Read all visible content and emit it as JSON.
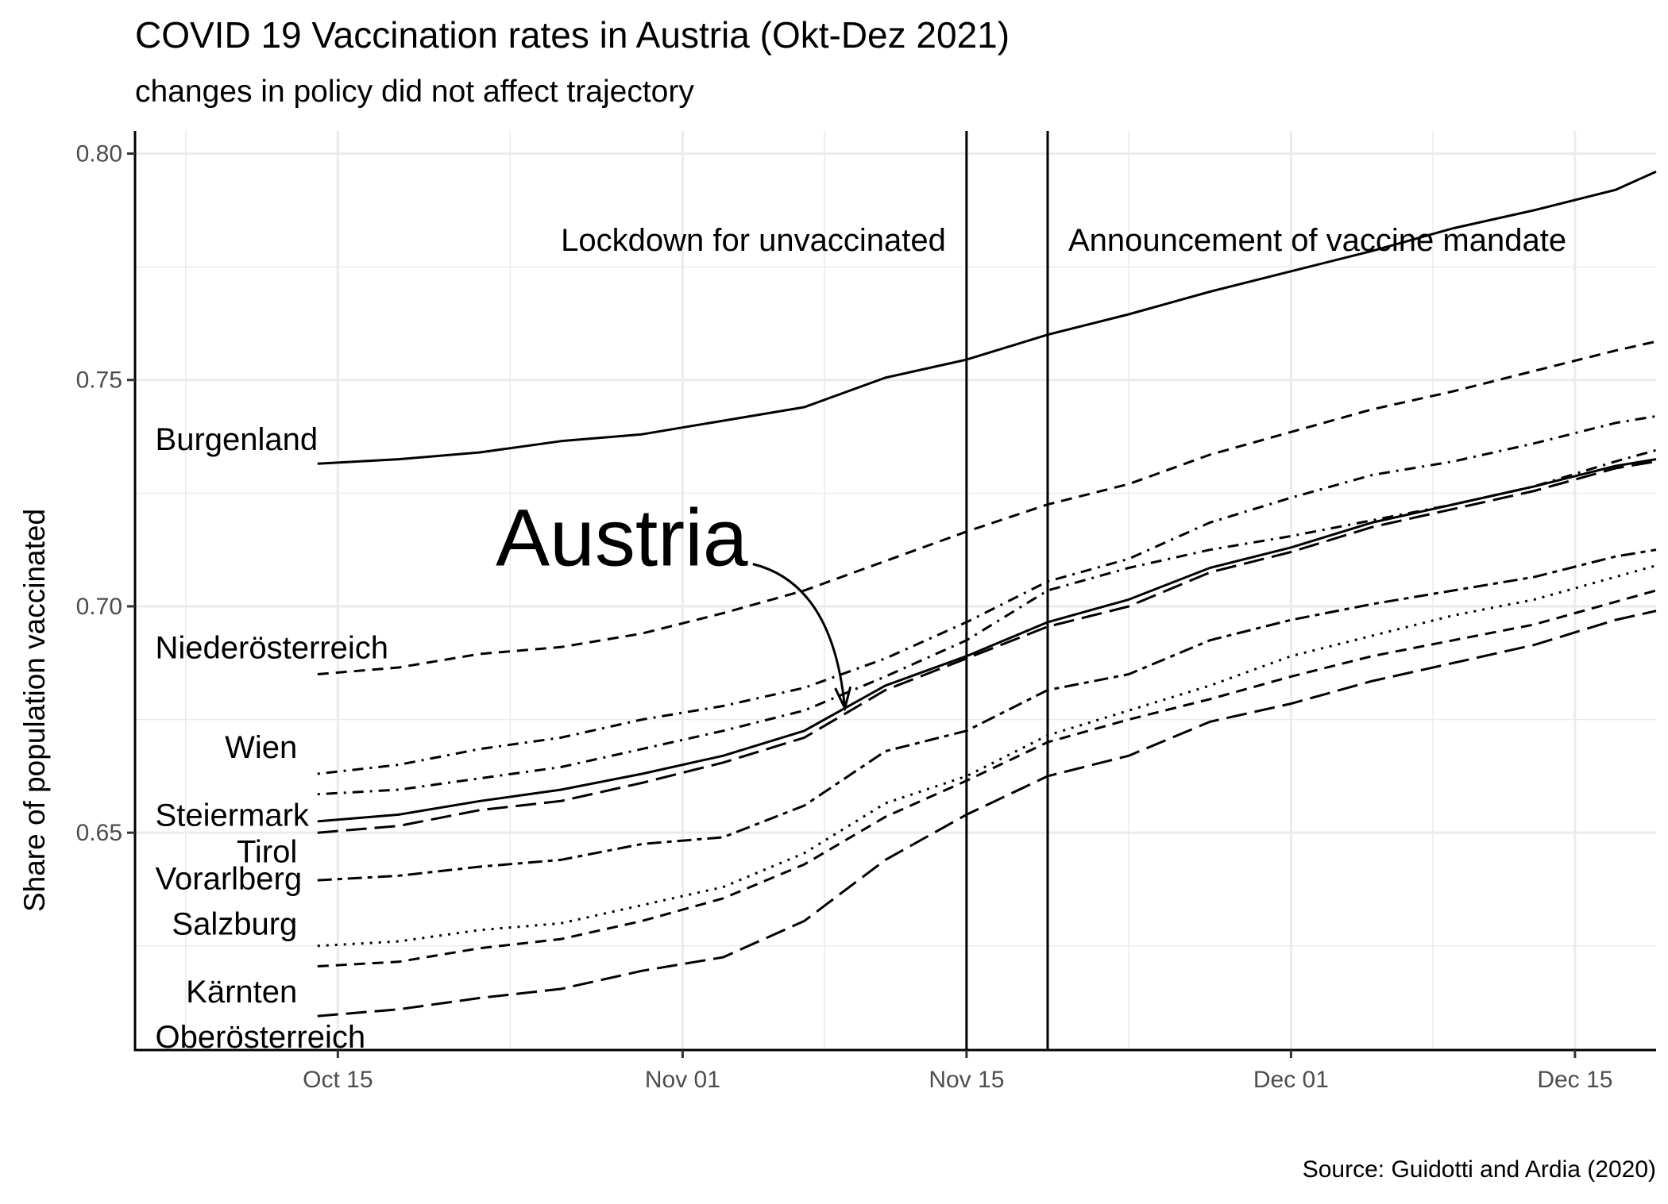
{
  "chart_data": {
    "type": "line",
    "title": "COVID 19 Vaccination rates in Austria (Okt-Dez 2021)",
    "subtitle": "changes in policy did not affect trajectory",
    "ylabel": "Share of population vaccinated",
    "xlabel": "",
    "caption": "Source: Guidotti and Ardia (2020)",
    "xlim": [
      "2021-10-05",
      "2021-12-19"
    ],
    "ylim": [
      0.602,
      0.805
    ],
    "x_ticks": [
      {
        "date": "2021-10-15",
        "label": "Oct 15"
      },
      {
        "date": "2021-11-01",
        "label": "Nov 01"
      },
      {
        "date": "2021-11-15",
        "label": "Nov 15"
      },
      {
        "date": "2021-12-01",
        "label": "Dec 01"
      },
      {
        "date": "2021-12-15",
        "label": "Dec 15"
      }
    ],
    "y_ticks": [
      {
        "value": 0.65,
        "label": "0.65"
      },
      {
        "value": 0.7,
        "label": "0.70"
      },
      {
        "value": 0.75,
        "label": "0.75"
      },
      {
        "value": 0.8,
        "label": "0.80"
      }
    ],
    "grid": true,
    "legend": "none",
    "events": [
      {
        "date": "2021-11-15",
        "label": "Lockdown for unvaccinated",
        "label_side": "left"
      },
      {
        "date": "2021-11-19",
        "label": "Announcement of vaccine mandate",
        "label_side": "right"
      }
    ],
    "annotation": {
      "text": "Austria",
      "text_position": {
        "date": "2021-10-29",
        "value": 0.709
      },
      "arrow_to": {
        "date": "2021-11-09",
        "value": 0.6775
      }
    },
    "series": [
      {
        "name": "Burgenland",
        "style": "solid",
        "width": 3,
        "x": [
          "2021-10-14",
          "2021-10-18",
          "2021-10-22",
          "2021-10-26",
          "2021-10-30",
          "2021-11-03",
          "2021-11-07",
          "2021-11-11",
          "2021-11-15",
          "2021-11-19",
          "2021-11-23",
          "2021-11-27",
          "2021-12-01",
          "2021-12-05",
          "2021-12-09",
          "2021-12-13",
          "2021-12-17",
          "2021-12-19"
        ],
        "values": [
          0.7315,
          0.7325,
          0.734,
          0.7365,
          0.738,
          0.741,
          0.744,
          0.7505,
          0.7545,
          0.76,
          0.7645,
          0.7695,
          0.774,
          0.7785,
          0.7835,
          0.7875,
          0.792,
          0.796
        ]
      },
      {
        "name": "Niederösterreich",
        "style": "dashed",
        "width": 3,
        "x": [
          "2021-10-14",
          "2021-10-18",
          "2021-10-22",
          "2021-10-26",
          "2021-10-30",
          "2021-11-03",
          "2021-11-07",
          "2021-11-11",
          "2021-11-15",
          "2021-11-19",
          "2021-11-23",
          "2021-11-27",
          "2021-12-01",
          "2021-12-05",
          "2021-12-09",
          "2021-12-13",
          "2021-12-17",
          "2021-12-19"
        ],
        "values": [
          0.685,
          0.6865,
          0.6895,
          0.691,
          0.694,
          0.6985,
          0.7035,
          0.71,
          0.7165,
          0.7225,
          0.727,
          0.7335,
          0.7385,
          0.7435,
          0.7475,
          0.752,
          0.7565,
          0.7585
        ]
      },
      {
        "name": "Wien",
        "style": "dotdash",
        "width": 3,
        "x": [
          "2021-10-14",
          "2021-10-18",
          "2021-10-22",
          "2021-10-26",
          "2021-10-30",
          "2021-11-03",
          "2021-11-07",
          "2021-11-11",
          "2021-11-15",
          "2021-11-19",
          "2021-11-23",
          "2021-11-27",
          "2021-12-01",
          "2021-12-05",
          "2021-12-09",
          "2021-12-13",
          "2021-12-17",
          "2021-12-19"
        ],
        "values": [
          0.663,
          0.665,
          0.6685,
          0.671,
          0.675,
          0.678,
          0.682,
          0.6885,
          0.6965,
          0.7055,
          0.7105,
          0.7185,
          0.724,
          0.729,
          0.732,
          0.736,
          0.7405,
          0.742
        ]
      },
      {
        "name": "Steiermark",
        "style": "solid",
        "width": 3,
        "x": [
          "2021-10-14",
          "2021-10-18",
          "2021-10-22",
          "2021-10-26",
          "2021-10-30",
          "2021-11-03",
          "2021-11-07",
          "2021-11-11",
          "2021-11-15",
          "2021-11-19",
          "2021-11-23",
          "2021-11-27",
          "2021-12-01",
          "2021-12-05",
          "2021-12-09",
          "2021-12-13",
          "2021-12-17",
          "2021-12-19"
        ],
        "values": [
          0.6525,
          0.654,
          0.657,
          0.6595,
          0.663,
          0.667,
          0.6725,
          0.6825,
          0.689,
          0.6965,
          0.7015,
          0.7085,
          0.713,
          0.7185,
          0.7225,
          0.7265,
          0.731,
          0.7325
        ]
      },
      {
        "name": "Tirol",
        "style": "dotdash",
        "width": 3,
        "x": [
          "2021-10-14",
          "2021-10-18",
          "2021-10-22",
          "2021-10-26",
          "2021-10-30",
          "2021-11-03",
          "2021-11-07",
          "2021-11-11",
          "2021-11-15",
          "2021-11-19",
          "2021-11-23",
          "2021-11-27",
          "2021-12-01",
          "2021-12-05",
          "2021-12-09",
          "2021-12-13",
          "2021-12-17",
          "2021-12-19"
        ],
        "values": [
          0.6585,
          0.6595,
          0.662,
          0.6645,
          0.6685,
          0.6725,
          0.677,
          0.6845,
          0.6925,
          0.7035,
          0.7085,
          0.7125,
          0.7155,
          0.719,
          0.7225,
          0.7265,
          0.732,
          0.7345
        ]
      },
      {
        "name": "Vorarlberg",
        "style": "longdash",
        "width": 3,
        "x": [
          "2021-10-14",
          "2021-10-18",
          "2021-10-22",
          "2021-10-26",
          "2021-10-30",
          "2021-11-03",
          "2021-11-07",
          "2021-11-11",
          "2021-11-15",
          "2021-11-19",
          "2021-11-23",
          "2021-11-27",
          "2021-12-01",
          "2021-12-05",
          "2021-12-09",
          "2021-12-13",
          "2021-12-17",
          "2021-12-19"
        ],
        "values": [
          0.65,
          0.6515,
          0.655,
          0.657,
          0.661,
          0.6655,
          0.671,
          0.6815,
          0.6885,
          0.6955,
          0.7,
          0.7075,
          0.712,
          0.7175,
          0.7215,
          0.7255,
          0.7305,
          0.732
        ]
      },
      {
        "name": "Salzburg",
        "style": "twodash",
        "width": 3,
        "x": [
          "2021-10-14",
          "2021-10-18",
          "2021-10-22",
          "2021-10-26",
          "2021-10-30",
          "2021-11-03",
          "2021-11-07",
          "2021-11-11",
          "2021-11-15",
          "2021-11-19",
          "2021-11-23",
          "2021-11-27",
          "2021-12-01",
          "2021-12-05",
          "2021-12-09",
          "2021-12-13",
          "2021-12-17",
          "2021-12-19"
        ],
        "values": [
          0.6395,
          0.6405,
          0.6425,
          0.644,
          0.6475,
          0.649,
          0.656,
          0.668,
          0.6725,
          0.6815,
          0.685,
          0.6925,
          0.697,
          0.7005,
          0.7035,
          0.7065,
          0.711,
          0.7125
        ]
      },
      {
        "name": "Kärnten",
        "style": "dotted",
        "width": 3,
        "x": [
          "2021-10-14",
          "2021-10-18",
          "2021-10-22",
          "2021-10-26",
          "2021-10-30",
          "2021-11-03",
          "2021-11-07",
          "2021-11-11",
          "2021-11-15",
          "2021-11-19",
          "2021-11-23",
          "2021-11-27",
          "2021-12-01",
          "2021-12-05",
          "2021-12-09",
          "2021-12-13",
          "2021-12-17",
          "2021-12-19"
        ],
        "values": [
          0.625,
          0.626,
          0.6285,
          0.63,
          0.634,
          0.638,
          0.6455,
          0.6565,
          0.6625,
          0.6715,
          0.677,
          0.6825,
          0.689,
          0.6935,
          0.698,
          0.7015,
          0.7065,
          0.709
        ]
      },
      {
        "name": "Oberösterreich",
        "style": "dashed",
        "width": 3,
        "x": [
          "2021-10-14",
          "2021-10-18",
          "2021-10-22",
          "2021-10-26",
          "2021-10-30",
          "2021-11-03",
          "2021-11-07",
          "2021-11-11",
          "2021-11-15",
          "2021-11-19",
          "2021-11-23",
          "2021-11-27",
          "2021-12-01",
          "2021-12-05",
          "2021-12-09",
          "2021-12-13",
          "2021-12-17",
          "2021-12-19"
        ],
        "values": [
          0.6205,
          0.6215,
          0.6245,
          0.6265,
          0.6305,
          0.6355,
          0.643,
          0.6535,
          0.6615,
          0.67,
          0.675,
          0.6795,
          0.6845,
          0.689,
          0.6925,
          0.696,
          0.701,
          0.7035
        ]
      },
      {
        "name": "",
        "style": "longdash",
        "width": 3,
        "x": [
          "2021-10-14",
          "2021-10-18",
          "2021-10-22",
          "2021-10-26",
          "2021-10-30",
          "2021-11-03",
          "2021-11-07",
          "2021-11-11",
          "2021-11-15",
          "2021-11-19",
          "2021-11-23",
          "2021-11-27",
          "2021-12-01",
          "2021-12-05",
          "2021-12-09",
          "2021-12-13",
          "2021-12-17",
          "2021-12-19"
        ],
        "values": [
          0.6095,
          0.611,
          0.6135,
          0.6155,
          0.6195,
          0.6225,
          0.6305,
          0.644,
          0.654,
          0.6625,
          0.667,
          0.6745,
          0.6785,
          0.6835,
          0.6875,
          0.6915,
          0.697,
          0.699
        ]
      }
    ],
    "labels": [
      {
        "text": "Burgenland",
        "date": "2021-10-06",
        "value": 0.7345,
        "anchor": "start"
      },
      {
        "text": "Niederösterreich",
        "date": "2021-10-06",
        "value": 0.6885,
        "anchor": "start"
      },
      {
        "text": "Wien",
        "date": "2021-10-13",
        "value": 0.6665,
        "anchor": "end"
      },
      {
        "text": "Steiermark",
        "date": "2021-10-06",
        "value": 0.6515,
        "anchor": "start"
      },
      {
        "text": "Tirol",
        "date": "2021-10-13",
        "value": 0.6435,
        "anchor": "end"
      },
      {
        "text": "Vorarlberg",
        "date": "2021-10-06",
        "value": 0.6375,
        "anchor": "start"
      },
      {
        "text": "Salzburg",
        "date": "2021-10-13",
        "value": 0.6275,
        "anchor": "end"
      },
      {
        "text": "Kärnten",
        "date": "2021-10-13",
        "value": 0.6125,
        "anchor": "end"
      },
      {
        "text": "Oberösterreich",
        "date": "2021-10-06",
        "value": 0.6025,
        "anchor": "start"
      }
    ]
  }
}
